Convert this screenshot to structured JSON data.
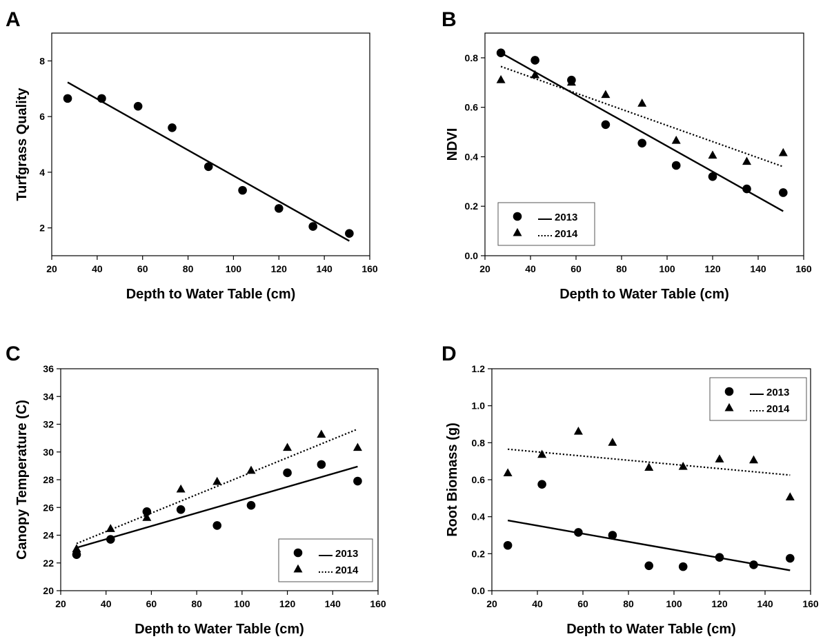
{
  "chart_data": [
    {
      "panel": "A",
      "type": "scatter",
      "xlabel": "Depth to Water Table (cm)",
      "ylabel": "Turfgrass Quality",
      "xlim": [
        20,
        160
      ],
      "ylim": [
        1,
        9
      ],
      "xticks": [
        "20",
        "40",
        "60",
        "80",
        "100",
        "120",
        "140",
        "160"
      ],
      "yticks": [
        "2",
        "4",
        "6",
        "8"
      ],
      "series": [
        {
          "marker": "circle",
          "x": [
            27,
            42,
            58,
            73,
            89,
            104,
            120,
            135,
            151
          ],
          "values": [
            6.65,
            6.65,
            6.37,
            5.6,
            4.2,
            3.35,
            2.7,
            2.05,
            1.8
          ],
          "fit": [
            [
              27,
              7.23
            ],
            [
              151,
              1.53
            ]
          ]
        }
      ],
      "legend": null
    },
    {
      "panel": "B",
      "type": "scatter",
      "xlabel": "Depth to Water Table (cm)",
      "ylabel": "NDVI",
      "xlim": [
        20,
        160
      ],
      "ylim": [
        0,
        0.9
      ],
      "xticks": [
        "20",
        "40",
        "60",
        "80",
        "100",
        "120",
        "140",
        "160"
      ],
      "yticks": [
        "0.0",
        "0.2",
        "0.4",
        "0.6",
        "0.8"
      ],
      "series": [
        {
          "name": "2013",
          "marker": "circle",
          "line": "solid",
          "x": [
            27,
            42,
            58,
            73,
            89,
            104,
            120,
            135,
            151
          ],
          "values": [
            0.82,
            0.79,
            0.71,
            0.53,
            0.455,
            0.365,
            0.32,
            0.27,
            0.255
          ],
          "fit": [
            [
              27,
              0.82
            ],
            [
              151,
              0.18
            ]
          ]
        },
        {
          "name": "2014",
          "marker": "triangle",
          "line": "dotted",
          "x": [
            27,
            42,
            58,
            73,
            89,
            104,
            120,
            135,
            151
          ],
          "values": [
            0.71,
            0.73,
            0.7,
            0.65,
            0.615,
            0.465,
            0.405,
            0.38,
            0.415
          ],
          "fit": [
            [
              27,
              0.765
            ],
            [
              151,
              0.36
            ]
          ]
        }
      ],
      "legend": {
        "entries": [
          {
            "line": "__",
            "label": "2013"
          },
          {
            "line": "....",
            "label": "2014"
          }
        ],
        "position": "bottom-left"
      }
    },
    {
      "panel": "C",
      "type": "scatter",
      "xlabel": "Depth to Water Table (cm)",
      "ylabel": "Canopy Temperature (C)",
      "xlim": [
        20,
        160
      ],
      "ylim": [
        20,
        36
      ],
      "xticks": [
        "20",
        "40",
        "60",
        "80",
        "100",
        "120",
        "140",
        "160"
      ],
      "yticks": [
        "20",
        "22",
        "24",
        "26",
        "28",
        "30",
        "32",
        "34",
        "36"
      ],
      "series": [
        {
          "name": "2013",
          "marker": "circle",
          "line": "solid",
          "x": [
            27,
            42,
            58,
            73,
            89,
            104,
            120,
            135,
            151
          ],
          "values": [
            22.6,
            23.7,
            25.7,
            25.85,
            24.7,
            26.15,
            28.5,
            29.1,
            27.9
          ],
          "fit": [
            [
              27,
              23.1
            ],
            [
              151,
              28.95
            ]
          ]
        },
        {
          "name": "2014",
          "marker": "triangle",
          "line": "dotted",
          "x": [
            27,
            42,
            58,
            73,
            89,
            104,
            120,
            135,
            151
          ],
          "values": [
            23.0,
            24.45,
            25.25,
            27.3,
            27.85,
            28.65,
            30.3,
            31.25,
            30.3
          ],
          "fit": [
            [
              27,
              23.4
            ],
            [
              151,
              31.65
            ]
          ]
        }
      ],
      "legend": {
        "entries": [
          {
            "line": "__",
            "label": "2013"
          },
          {
            "line": "....",
            "label": "2014"
          }
        ],
        "position": "bottom-right"
      }
    },
    {
      "panel": "D",
      "type": "scatter",
      "xlabel": "Depth to Water Table (cm)",
      "ylabel": "Root Biomass (g)",
      "xlim": [
        20,
        160
      ],
      "ylim": [
        0,
        1.2
      ],
      "xticks": [
        "20",
        "40",
        "60",
        "80",
        "100",
        "120",
        "140",
        "160"
      ],
      "yticks": [
        "0.0",
        "0.2",
        "0.4",
        "0.6",
        "0.8",
        "1.0",
        "1.2"
      ],
      "series": [
        {
          "name": "2013",
          "marker": "circle",
          "line": "solid",
          "x": [
            27,
            42,
            58,
            73,
            89,
            104,
            120,
            135,
            151
          ],
          "values": [
            0.245,
            0.575,
            0.315,
            0.3,
            0.135,
            0.13,
            0.18,
            0.14,
            0.175
          ],
          "fit": [
            [
              27,
              0.38
            ],
            [
              151,
              0.11
            ]
          ]
        },
        {
          "name": "2014",
          "marker": "triangle",
          "line": "dotted",
          "x": [
            27,
            42,
            58,
            73,
            89,
            104,
            120,
            135,
            151
          ],
          "values": [
            0.635,
            0.735,
            0.86,
            0.8,
            0.665,
            0.67,
            0.71,
            0.705,
            0.505
          ],
          "fit": [
            [
              27,
              0.765
            ],
            [
              151,
              0.625
            ]
          ]
        }
      ],
      "legend": {
        "entries": [
          {
            "line": "__",
            "label": "2013"
          },
          {
            "line": "....",
            "label": "2014"
          }
        ],
        "position": "top-right"
      }
    }
  ]
}
